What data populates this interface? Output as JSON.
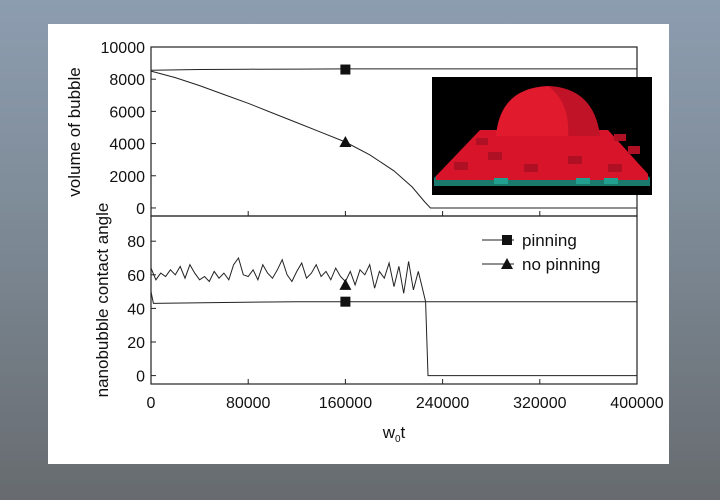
{
  "chart_data": [
    {
      "type": "line",
      "panel": "top",
      "ylabel": "volume of bubble",
      "xlim": [
        0,
        400000
      ],
      "ylim": [
        -500,
        10000
      ],
      "yticks": [
        0,
        2000,
        4000,
        6000,
        8000,
        10000
      ],
      "ytick_labels": [
        "0",
        "2000",
        "4000",
        "6000",
        "8000",
        "10000"
      ],
      "series": [
        {
          "name": "pinning",
          "marker": "square",
          "marker_point": [
            160000,
            8600
          ],
          "x": [
            0,
            40000,
            80000,
            120000,
            160000,
            200000,
            240000,
            280000,
            320000,
            360000,
            400000
          ],
          "y": [
            8550,
            8600,
            8620,
            8630,
            8640,
            8640,
            8640,
            8640,
            8640,
            8640,
            8640
          ]
        },
        {
          "name": "no pinning",
          "marker": "triangle",
          "marker_point": [
            160000,
            4100
          ],
          "x": [
            0,
            20000,
            40000,
            60000,
            80000,
            100000,
            120000,
            140000,
            160000,
            180000,
            200000,
            215000,
            225000,
            230000,
            240000,
            280000,
            320000,
            360000,
            400000
          ],
          "y": [
            8500,
            8100,
            7600,
            7050,
            6500,
            5900,
            5300,
            4700,
            4100,
            3300,
            2300,
            1300,
            400,
            0,
            0,
            0,
            0,
            0,
            0
          ]
        }
      ],
      "inset": {
        "description_icon": "3d-bubble-render",
        "colors": {
          "bubble": "#d8142a",
          "substrate": "#1a7a6e",
          "background": "#000000"
        }
      }
    },
    {
      "type": "line",
      "panel": "bottom",
      "ylabel": "nanobubble contact angle",
      "xlabel": "w",
      "xlabel_sub": "0",
      "xlabel_suffix": "t",
      "xlim": [
        0,
        400000
      ],
      "ylim": [
        -5,
        95
      ],
      "xticks": [
        0,
        80000,
        160000,
        240000,
        320000,
        400000
      ],
      "xtick_labels": [
        "0",
        "80000",
        "160000",
        "240000",
        "320000",
        "400000"
      ],
      "yticks": [
        0,
        20,
        40,
        60,
        80
      ],
      "ytick_labels": [
        "0",
        "20",
        "40",
        "60",
        "80"
      ],
      "legend": {
        "placement": "top-right",
        "entries": [
          {
            "label": "pinning",
            "marker": "square"
          },
          {
            "label": "no pinning",
            "marker": "triangle"
          }
        ]
      },
      "series": [
        {
          "name": "pinning",
          "marker": "square",
          "marker_point": [
            160000,
            44
          ],
          "x": [
            0,
            2000,
            60000,
            120000,
            200000,
            280000,
            360000,
            400000
          ],
          "y": [
            50,
            43,
            43.5,
            44,
            44,
            44,
            44,
            44
          ]
        },
        {
          "name": "no pinning",
          "marker": "triangle",
          "marker_point": [
            160000,
            54
          ],
          "x": [
            0,
            4000,
            8000,
            12000,
            16000,
            20000,
            24000,
            28000,
            32000,
            36000,
            40000,
            44000,
            48000,
            52000,
            56000,
            60000,
            64000,
            68000,
            72000,
            76000,
            80000,
            84000,
            88000,
            92000,
            96000,
            100000,
            104000,
            108000,
            112000,
            116000,
            120000,
            124000,
            128000,
            132000,
            136000,
            140000,
            144000,
            148000,
            152000,
            156000,
            160000,
            164000,
            168000,
            172000,
            176000,
            180000,
            184000,
            188000,
            192000,
            196000,
            200000,
            204000,
            208000,
            212000,
            216000,
            220000,
            224000,
            226000,
            228000,
            240000,
            320000,
            400000
          ],
          "y": [
            64,
            57,
            61,
            59,
            63,
            60,
            65,
            58,
            66,
            61,
            57,
            59,
            56,
            62,
            58,
            61,
            57,
            66,
            70,
            60,
            59,
            63,
            57,
            66,
            61,
            58,
            63,
            69,
            60,
            56,
            62,
            67,
            58,
            61,
            66,
            59,
            62,
            57,
            64,
            59,
            56,
            62,
            54,
            63,
            60,
            66,
            52,
            62,
            58,
            67,
            53,
            65,
            49,
            68,
            51,
            62,
            50,
            44,
            0,
            0,
            0,
            0
          ]
        }
      ]
    }
  ]
}
